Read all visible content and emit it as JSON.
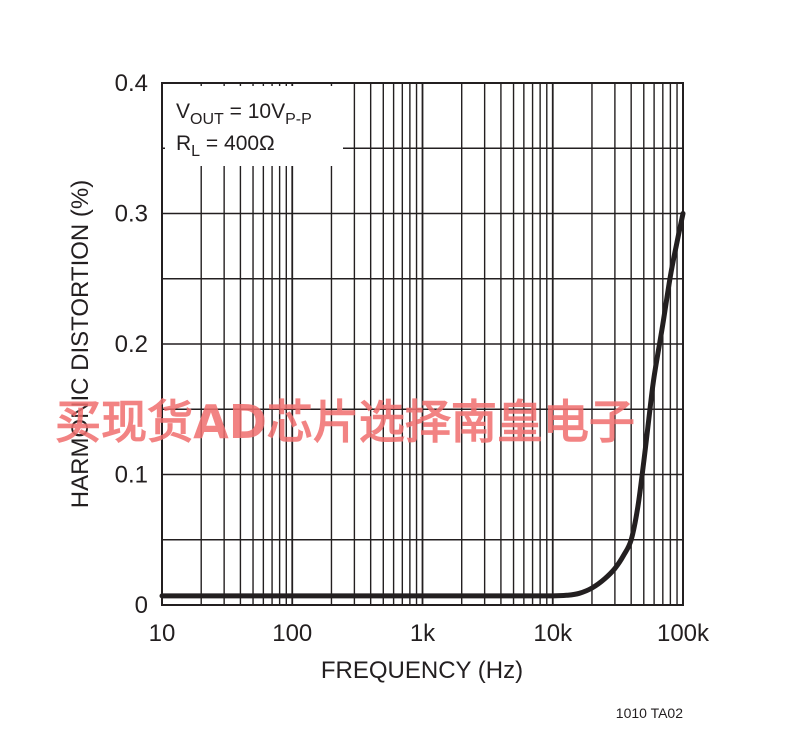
{
  "chart_data": {
    "type": "line",
    "xlabel": "FREQUENCY (Hz)",
    "ylabel": "HARMONIC DISTORTION (%)",
    "x_scale": "log",
    "xlim": [
      10,
      100000
    ],
    "ylim": [
      0,
      0.4
    ],
    "x_ticks": [
      {
        "value": 10,
        "label": "10"
      },
      {
        "value": 100,
        "label": "100"
      },
      {
        "value": 1000,
        "label": "1k"
      },
      {
        "value": 10000,
        "label": "10k"
      },
      {
        "value": 100000,
        "label": "100k"
      }
    ],
    "y_ticks": [
      {
        "value": 0,
        "label": "0"
      },
      {
        "value": 0.1,
        "label": "0.1"
      },
      {
        "value": 0.2,
        "label": "0.2"
      },
      {
        "value": 0.3,
        "label": "0.3"
      },
      {
        "value": 0.4,
        "label": "0.4"
      }
    ],
    "grid": true,
    "annotations": {
      "vout_main": "V",
      "vout_sub": "OUT",
      "vout_mid": " = 10V",
      "vout_sub2": "P-P",
      "rl_main": "R",
      "rl_sub": "L",
      "rl_rest": " = 400Ω"
    },
    "series": [
      {
        "color": "#231f20",
        "points": [
          [
            10,
            0.007
          ],
          [
            100,
            0.007
          ],
          [
            1000,
            0.007
          ],
          [
            5000,
            0.007
          ],
          [
            10000,
            0.007
          ],
          [
            13000,
            0.0075
          ],
          [
            16000,
            0.009
          ],
          [
            20000,
            0.013
          ],
          [
            25000,
            0.02
          ],
          [
            30000,
            0.028
          ],
          [
            35000,
            0.038
          ],
          [
            40000,
            0.05
          ],
          [
            45000,
            0.075
          ],
          [
            50000,
            0.11
          ],
          [
            55000,
            0.145
          ],
          [
            60000,
            0.175
          ],
          [
            70000,
            0.215
          ],
          [
            80000,
            0.252
          ],
          [
            90000,
            0.278
          ],
          [
            100000,
            0.3
          ]
        ]
      }
    ]
  },
  "figure_id": "1010 TA02",
  "watermark": "买现货AD芯片选择南皇电子"
}
